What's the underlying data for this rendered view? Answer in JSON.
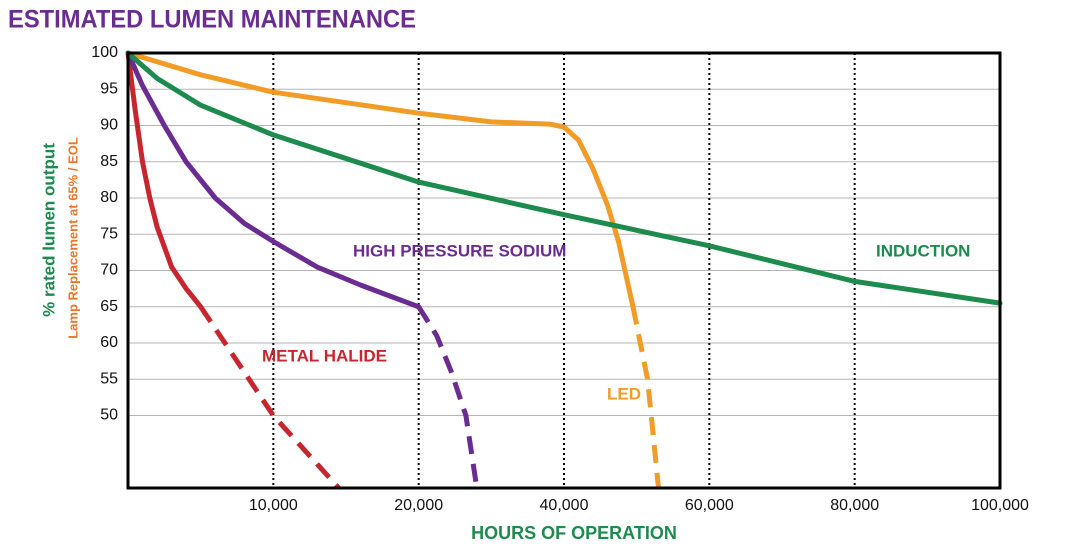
{
  "chart_data": {
    "type": "line",
    "title": "ESTIMATED LUMEN MAINTENANCE",
    "y_label": "% rated lumen output",
    "y_sublabel": "Lamp Replacement at 65% / EOL",
    "x_label": "HOURS OF OPERATION",
    "xlim": [
      0,
      100000
    ],
    "xticks": [
      {
        "value": 10000,
        "label": "10,000"
      },
      {
        "value": 20000,
        "label": "20,000"
      },
      {
        "value": 40000,
        "label": "40,000"
      },
      {
        "value": 60000,
        "label": "60,000"
      },
      {
        "value": 80000,
        "label": "80,000"
      },
      {
        "value": 100000,
        "label": "100,000"
      }
    ],
    "ylim": [
      40,
      100
    ],
    "yticks": [
      50,
      55,
      60,
      65,
      70,
      75,
      80,
      85,
      90,
      95,
      100
    ],
    "eol_level": 65,
    "eol_color": "#e8772e",
    "grid": true,
    "series": [
      {
        "name": "METAL HALIDE",
        "color": "#c8262e",
        "x": [
          0,
          500,
          1000,
          1500,
          2000,
          3000,
          4000,
          5000,
          7500,
          10000,
          14500
        ],
        "values": [
          100,
          92,
          85,
          80,
          76,
          70.5,
          67.5,
          65,
          57.5,
          50,
          40
        ]
      },
      {
        "name": "HIGH PRESSURE SODIUM",
        "color": "#6a2c91",
        "x": [
          0,
          1000,
          2500,
          4000,
          6000,
          8000,
          10000,
          13000,
          16000,
          20000,
          22500,
          24500,
          26500,
          28000
        ],
        "values": [
          100,
          95.5,
          90,
          85,
          80,
          76.5,
          74,
          70.5,
          68,
          65,
          61,
          56,
          50,
          40
        ]
      },
      {
        "name": "LED",
        "color": "#f29b26",
        "x": [
          0,
          5000,
          10000,
          20000,
          30000,
          38000,
          40000,
          42000,
          44000,
          46000,
          47500,
          49500,
          51500,
          53000
        ],
        "values": [
          100,
          97,
          94.6,
          91.7,
          90.5,
          90.2,
          89.8,
          88,
          84,
          79,
          74,
          65,
          55,
          40
        ]
      },
      {
        "name": "INDUCTION",
        "color": "#1d8a4e",
        "x": [
          0,
          2000,
          5000,
          10000,
          20000,
          40000,
          60000,
          80000,
          100000
        ],
        "values": [
          100,
          96.5,
          92.8,
          88.7,
          82.2,
          77.7,
          73.4,
          68.5,
          65.5
        ]
      }
    ]
  }
}
